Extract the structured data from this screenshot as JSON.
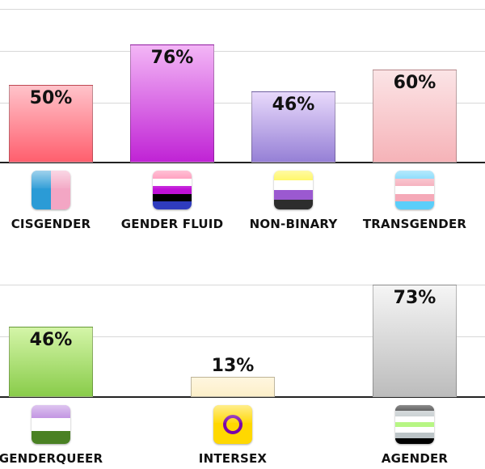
{
  "chart_data": [
    {
      "type": "bar",
      "title": "",
      "xlabel": "",
      "ylabel": "",
      "ylim": [
        0,
        100
      ],
      "grid": true,
      "categories": [
        "CISGENDER",
        "GENDER FLUID",
        "NON-BINARY",
        "TRANSGENDER"
      ],
      "values": [
        50,
        76,
        46,
        60
      ],
      "value_labels": [
        "50%",
        "76%",
        "46%",
        "60%"
      ],
      "bar_colors": [
        [
          "#ffc3ca",
          "#ff5f6e"
        ],
        [
          "#f3b6f6",
          "#c023d5"
        ],
        [
          "#e8d9fb",
          "#9680d6"
        ],
        [
          "#fbe4e6",
          "#f6b3b8"
        ]
      ],
      "flags": [
        {
          "name": "cisgender-flag",
          "kind": "vertical",
          "colors": [
            "#2b9bd6",
            "#f3a6c4"
          ]
        },
        {
          "name": "gender-fluid-flag",
          "kind": "horizontal",
          "colors": [
            "#ff76a4",
            "#ffffff",
            "#c011d7",
            "#000000",
            "#2f3cbe"
          ]
        },
        {
          "name": "non-binary-flag",
          "kind": "horizontal",
          "colors": [
            "#fff433",
            "#ffffff",
            "#9b59d0",
            "#2d2d2d"
          ]
        },
        {
          "name": "transgender-flag",
          "kind": "horizontal",
          "colors": [
            "#5bcefa",
            "#f5a9b8",
            "#ffffff",
            "#f5a9b8",
            "#5bcefa"
          ]
        }
      ]
    },
    {
      "type": "bar",
      "title": "",
      "xlabel": "",
      "ylabel": "",
      "ylim": [
        0,
        100
      ],
      "grid": true,
      "categories": [
        "GENDERQUEER",
        "INTERSEX",
        "AGENDER"
      ],
      "values": [
        46,
        13,
        73
      ],
      "value_labels": [
        "46%",
        "13%",
        "73%"
      ],
      "bar_colors": [
        [
          "#d4f5a8",
          "#89cc4a"
        ],
        [
          "#fff6df",
          "#fcefc9"
        ],
        [
          "#f5f5f5",
          "#bcbcbc"
        ]
      ],
      "flags": [
        {
          "name": "genderqueer-flag",
          "kind": "horizontal",
          "colors": [
            "#b57edc",
            "#ffffff",
            "#4a8123"
          ]
        },
        {
          "name": "intersex-flag",
          "kind": "ring",
          "colors": [
            "#ffd800",
            "#7902aa"
          ]
        },
        {
          "name": "agender-flag",
          "kind": "horizontal",
          "colors": [
            "#000000",
            "#bcc4c7",
            "#ffffff",
            "#b7f684",
            "#ffffff",
            "#bcc4c7",
            "#000000"
          ]
        }
      ]
    }
  ]
}
